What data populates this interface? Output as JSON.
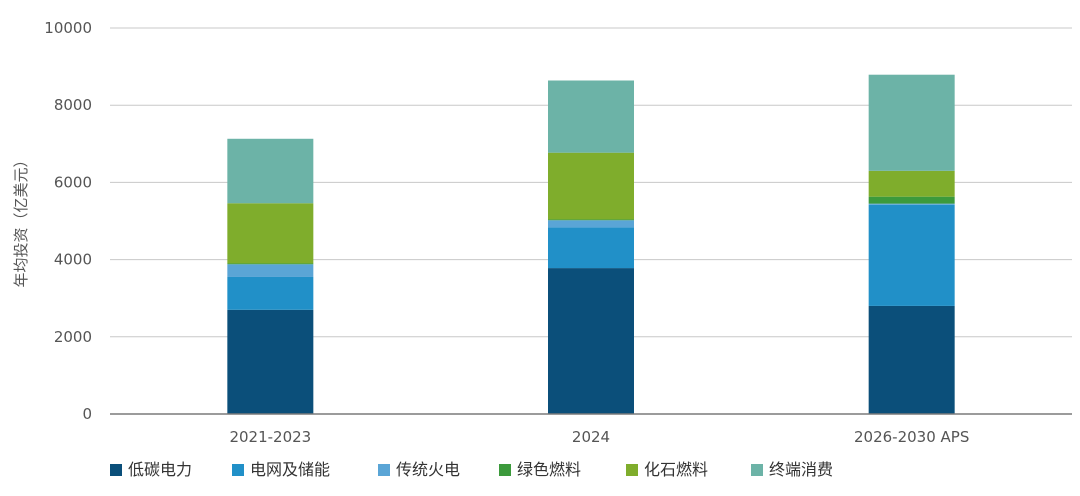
{
  "chart_data": {
    "type": "bar",
    "stacked": true,
    "title": "",
    "xlabel": "",
    "ylabel": "年均投资（亿美元）",
    "ylim": [
      0,
      10000
    ],
    "yticks": [
      0,
      2000,
      4000,
      6000,
      8000,
      10000
    ],
    "categories": [
      "2021-2023",
      "2024",
      "2026-2030 APS"
    ],
    "grid": "horizontal",
    "legend_position": "bottom",
    "series": [
      {
        "name": "低碳电力",
        "color": "#0b4f7a",
        "values": [
          2700,
          3780,
          2800
        ]
      },
      {
        "name": "电网及储能",
        "color": "#2190c8",
        "values": [
          850,
          1050,
          2620
        ]
      },
      {
        "name": "传统火电",
        "color": "#5aa5d6",
        "values": [
          330,
          190,
          30
        ]
      },
      {
        "name": "绿色燃料",
        "color": "#3c9a3c",
        "values": [
          20,
          20,
          180
        ]
      },
      {
        "name": "化石燃料",
        "color": "#7fad2c",
        "values": [
          1560,
          1730,
          670
        ]
      },
      {
        "name": "终端消费",
        "color": "#6cb3a7",
        "values": [
          1670,
          1870,
          2490
        ]
      }
    ]
  }
}
